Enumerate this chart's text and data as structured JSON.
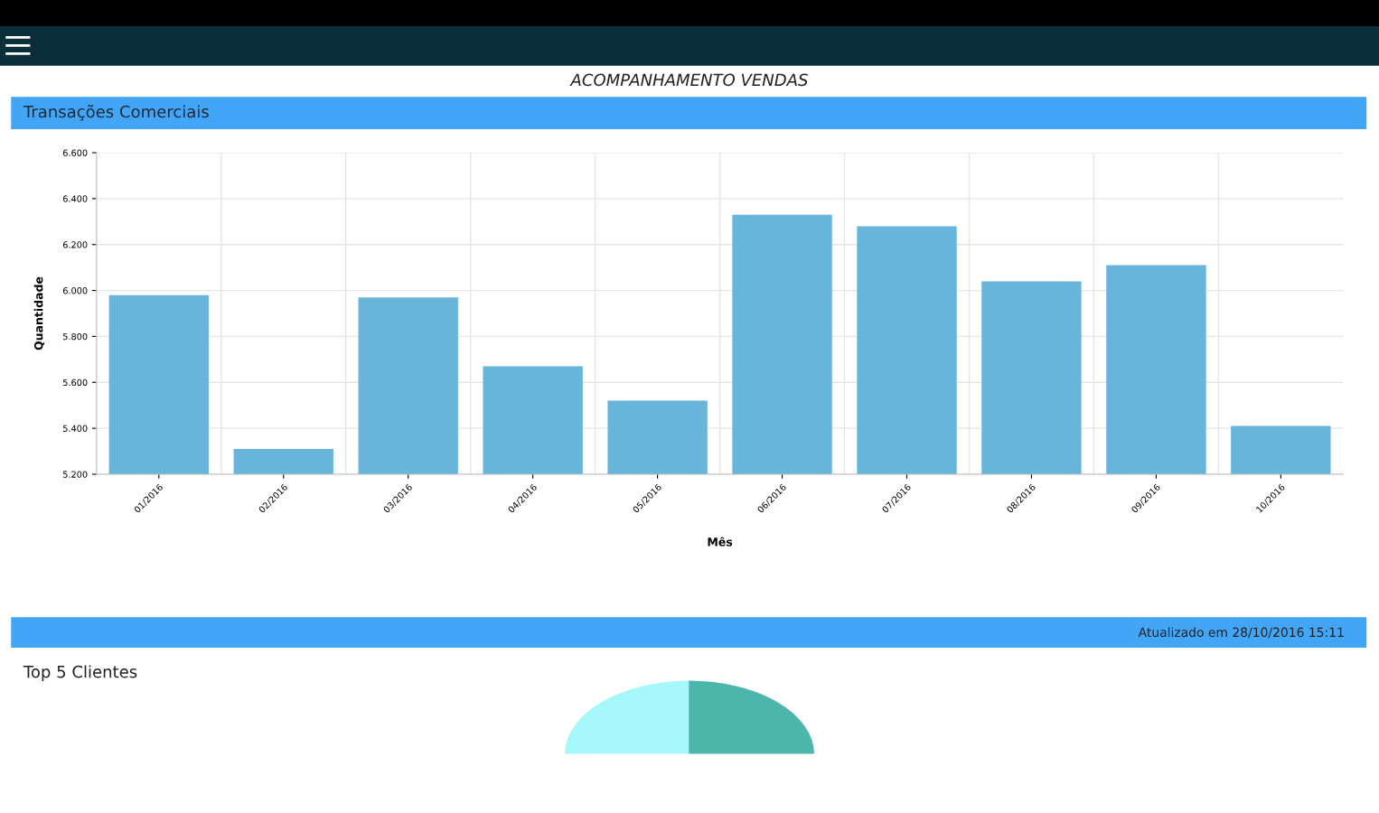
{
  "chart_data": {
    "type": "bar",
    "title": "Transações Comerciais",
    "xlabel": "Mês",
    "ylabel": "Quantidade",
    "categories": [
      "01/2016",
      "02/2016",
      "03/2016",
      "04/2016",
      "05/2016",
      "06/2016",
      "07/2016",
      "08/2016",
      "09/2016",
      "10/2016"
    ],
    "values": [
      5980,
      5310,
      5970,
      5670,
      5520,
      6330,
      6280,
      6040,
      6110,
      5410
    ],
    "color": "#67b5db",
    "ylim": [
      5200,
      6600
    ],
    "yticks": [
      {
        "value": 5200,
        "label": "5.200"
      },
      {
        "value": 5400,
        "label": "5.400"
      },
      {
        "value": 5600,
        "label": "5.600"
      },
      {
        "value": 5800,
        "label": "5.800"
      },
      {
        "value": 6000,
        "label": "6.000"
      },
      {
        "value": 6200,
        "label": "6.200"
      },
      {
        "value": 6400,
        "label": "6.400"
      },
      {
        "value": 6600,
        "label": "6.600"
      }
    ],
    "grid": true,
    "annotations": [
      "ACOMPANHAMENTO VENDAS",
      "Atualizado em 28/10/2016 15:11",
      "Top 5 Clientes"
    ]
  }
}
